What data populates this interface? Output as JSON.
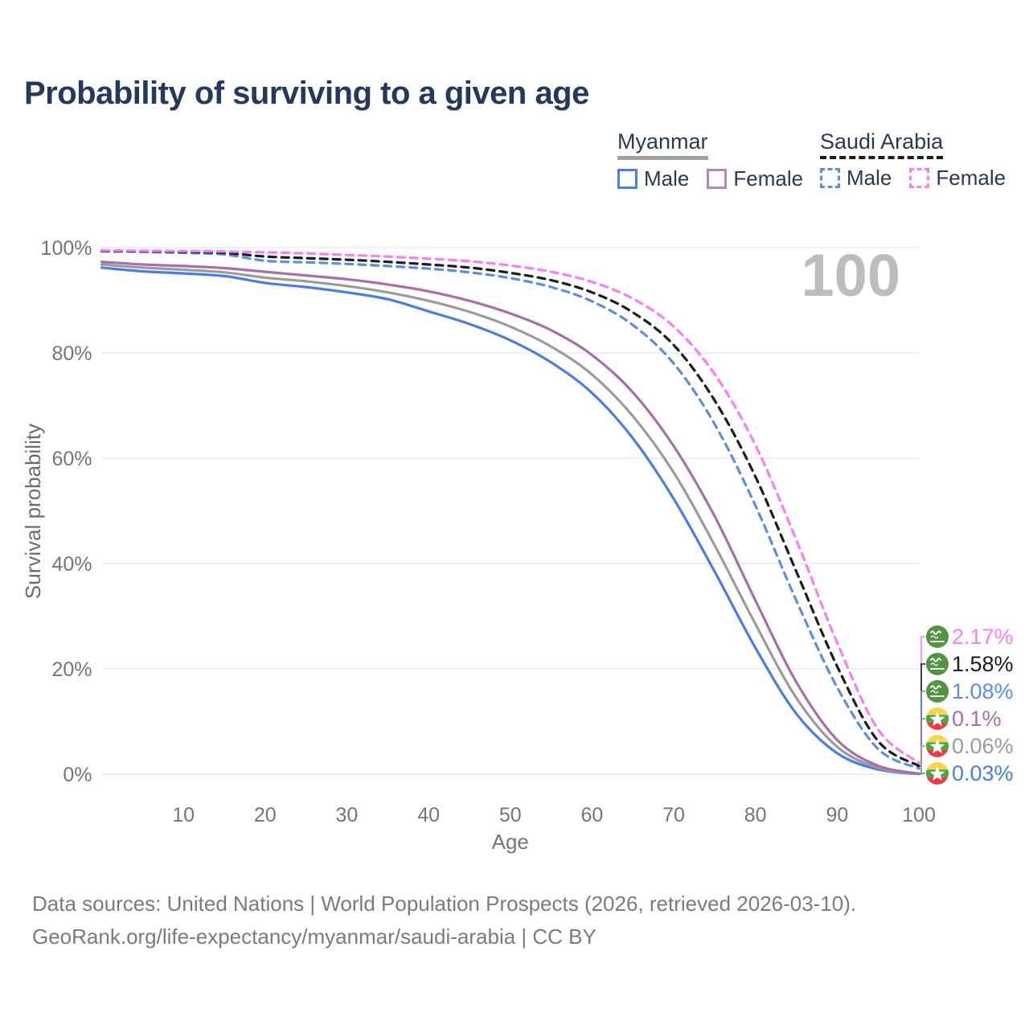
{
  "title": "Probability of surviving to a given age",
  "legend": {
    "groups": [
      {
        "name": "Myanmar",
        "line_style": "solid",
        "underline_color": "#9ca1a7",
        "items": [
          {
            "label": "Male",
            "color": "#4a7de1"
          },
          {
            "label": "Female",
            "color": "#b286bd"
          }
        ]
      },
      {
        "name": "Saudi Arabia",
        "line_style": "dashed",
        "underline_color": "#1c1c1c",
        "items": [
          {
            "label": "Male",
            "color": "#5c8ce4"
          },
          {
            "label": "Female",
            "color": "#fb7cf3"
          }
        ]
      }
    ]
  },
  "chart_data": {
    "type": "line",
    "title": "Probability of surviving to a given age",
    "xlabel": "Age",
    "ylabel": "Survival probability",
    "xlim": [
      0,
      100
    ],
    "ylim": [
      0,
      100
    ],
    "xticks": [
      10,
      20,
      30,
      40,
      50,
      60,
      70,
      80,
      90,
      100
    ],
    "yticks": [
      0,
      20,
      40,
      60,
      80,
      100
    ],
    "ytick_suffix": "%",
    "grid": "horizontal",
    "watermark": "100",
    "watermark_color": "#bdbdbd",
    "tick_color": "#757575",
    "grid_color": "#eaeaea",
    "x": [
      0,
      5,
      10,
      15,
      20,
      25,
      30,
      35,
      40,
      45,
      50,
      55,
      60,
      65,
      70,
      75,
      80,
      85,
      90,
      95,
      100
    ],
    "series": [
      {
        "name": "Myanmar Male",
        "country": "Myanmar",
        "sex": "Male",
        "flag": "myanmar",
        "color": "#4a7de1",
        "dash": false,
        "end_label": "0.03%",
        "values": [
          96.2,
          95.5,
          95.1,
          94.6,
          93.3,
          92.5,
          91.5,
          90.2,
          87.9,
          85.5,
          82.4,
          78.2,
          72.4,
          63.8,
          52.3,
          38.5,
          24.0,
          11.5,
          4.0,
          0.9,
          0.03
        ]
      },
      {
        "name": "Myanmar Both Sexes",
        "country": "Myanmar",
        "sex": "Both",
        "flag": "myanmar",
        "color": "#9b9b9b",
        "dash": false,
        "end_label": "0.06%",
        "values": [
          96.8,
          96.2,
          95.8,
          95.3,
          94.3,
          93.6,
          92.7,
          91.5,
          89.9,
          87.8,
          85.0,
          81.2,
          75.9,
          68.0,
          57.3,
          43.5,
          28.5,
          14.5,
          5.2,
          1.2,
          0.06
        ]
      },
      {
        "name": "Myanmar Female",
        "country": "Myanmar",
        "sex": "Female",
        "flag": "myanmar",
        "color": "#a76fa9",
        "dash": false,
        "end_label": "0.1%",
        "values": [
          97.3,
          96.8,
          96.5,
          96.1,
          95.4,
          94.7,
          94.0,
          93.0,
          91.7,
          89.9,
          87.5,
          84.3,
          79.6,
          72.5,
          62.3,
          49.0,
          33.0,
          17.5,
          6.5,
          1.6,
          0.1
        ]
      },
      {
        "name": "Saudi Arabia Male",
        "country": "Saudi Arabia",
        "sex": "Male",
        "flag": "saudi",
        "color": "#5c8ce4",
        "dash": true,
        "end_label": "1.08%",
        "values": [
          99.3,
          99.2,
          99.0,
          98.7,
          97.5,
          97.2,
          96.9,
          96.5,
          96.0,
          95.3,
          94.2,
          92.5,
          89.8,
          85.3,
          78.0,
          66.5,
          51.0,
          33.0,
          16.5,
          4.8,
          1.08
        ]
      },
      {
        "name": "Saudi Arabia Both Sexes",
        "country": "Saudi Arabia",
        "sex": "Both",
        "flag": "saudi",
        "color": "#1c1c1c",
        "dash": true,
        "end_label": "1.58%",
        "values": [
          99.4,
          99.3,
          99.2,
          99.0,
          98.3,
          98.0,
          97.7,
          97.3,
          96.8,
          96.2,
          95.2,
          93.8,
          91.5,
          87.7,
          81.5,
          71.0,
          56.5,
          38.5,
          20.5,
          6.3,
          1.58
        ]
      },
      {
        "name": "Saudi Arabia Female",
        "country": "Saudi Arabia",
        "sex": "Female",
        "flag": "saudi",
        "color": "#fb7cf3",
        "dash": true,
        "end_label": "2.17%",
        "values": [
          99.5,
          99.4,
          99.35,
          99.25,
          99.1,
          98.9,
          98.6,
          98.3,
          97.9,
          97.4,
          96.6,
          95.4,
          93.5,
          90.3,
          85.0,
          76.0,
          62.5,
          44.5,
          25.0,
          8.5,
          2.17
        ]
      }
    ],
    "flag_colors": {
      "saudi_green": "#549343",
      "myanmar_yellow": "#fbd44e",
      "myanmar_green": "#45a83e",
      "myanmar_red": "#ea3b43",
      "star_white": "#ffffff"
    },
    "legend_position": "top-right"
  },
  "footer": {
    "line1": "Data sources: United Nations | World Population Prospects (2026, retrieved 2026-03-10).",
    "line2": "GeoRank.org/life-expectancy/myanmar/saudi-arabia | CC BY"
  }
}
